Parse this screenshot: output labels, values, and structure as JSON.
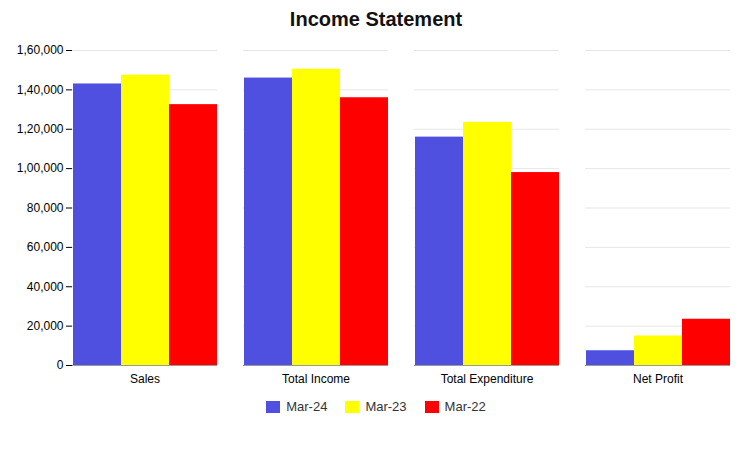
{
  "chart_data": {
    "type": "bar",
    "title": "Income Statement",
    "categories": [
      "Sales",
      "Total Income",
      "Total Expenditure",
      "Net Profit"
    ],
    "series": [
      {
        "name": "Mar-24",
        "color": "#5050e0",
        "values": [
          143000,
          146000,
          116000,
          7500
        ]
      },
      {
        "name": "Mar-23",
        "color": "#ffff00",
        "values": [
          147500,
          150500,
          123500,
          15000
        ]
      },
      {
        "name": "Mar-22",
        "color": "#ff0000",
        "values": [
          132500,
          136000,
          98000,
          23500
        ]
      }
    ],
    "ylim": [
      0,
      160000
    ],
    "yticks": [
      0,
      {
        "value": 20000,
        "label": "20,000"
      },
      {
        "value": 40000,
        "label": "40,000"
      },
      {
        "value": 60000,
        "label": "60,000"
      },
      {
        "value": 80000,
        "label": "80,000"
      },
      {
        "value": 100000,
        "label": "1,00,000"
      },
      {
        "value": 120000,
        "label": "1,20,000"
      },
      {
        "value": 140000,
        "label": "1,40,000"
      },
      {
        "value": 160000,
        "label": "1,60,000"
      }
    ],
    "grid": true,
    "legend": "bottom"
  }
}
